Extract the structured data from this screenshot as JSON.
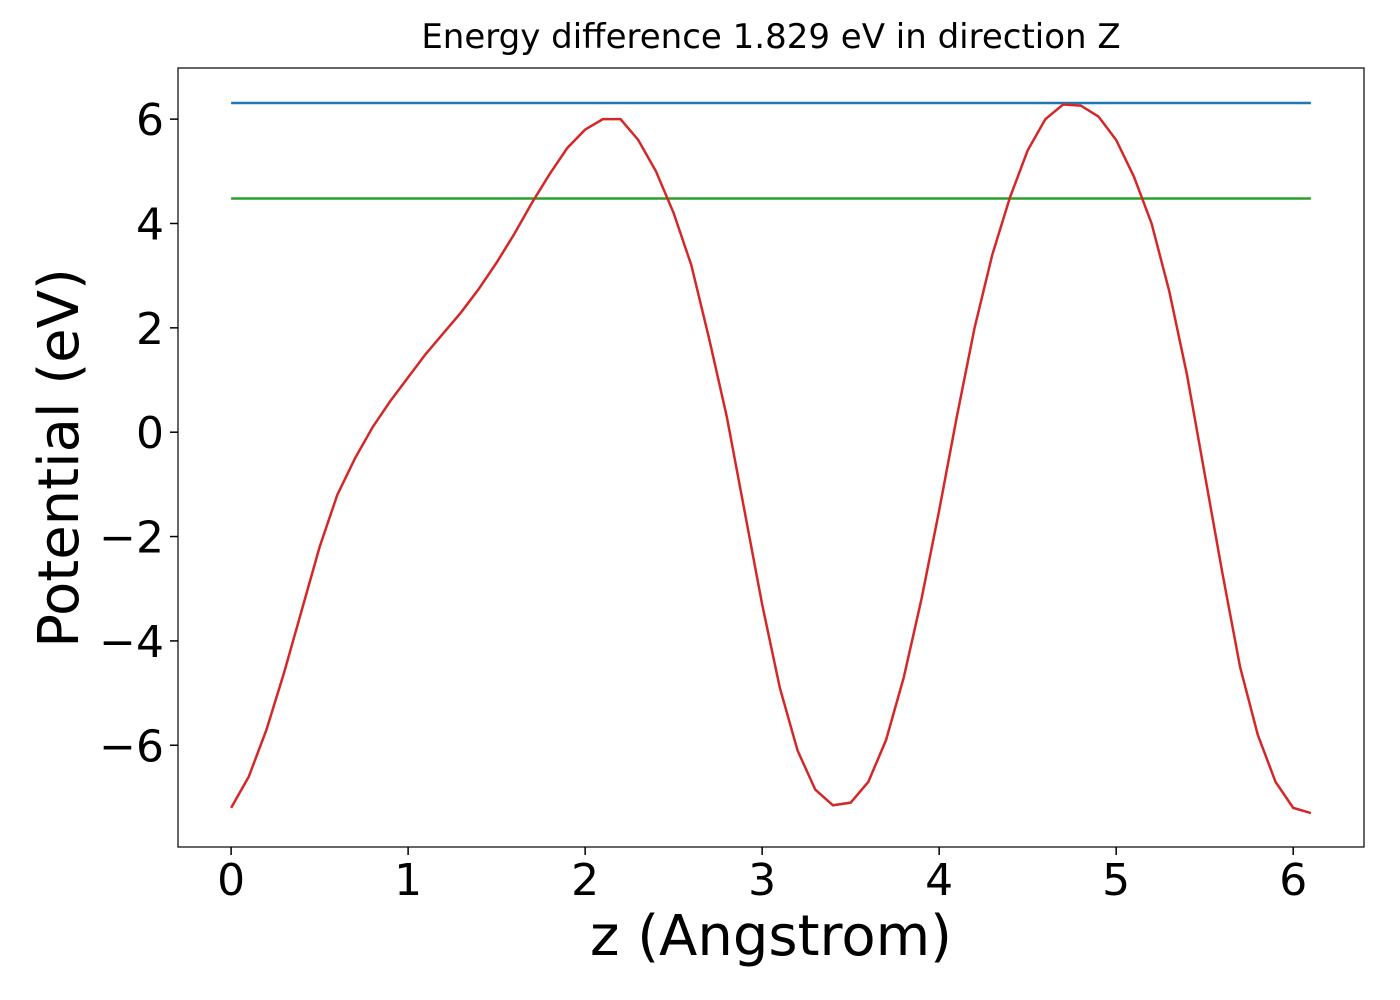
{
  "chart_data": {
    "type": "line",
    "title": "Energy difference 1.829 eV in direction Z",
    "xlabel": "z (Angstrom)",
    "ylabel": "Potential (eV)",
    "xlim": [
      -0.3,
      6.4
    ],
    "ylim": [
      -7.95,
      6.98
    ],
    "xticks": [
      0,
      1,
      2,
      3,
      4,
      5,
      6
    ],
    "yticks": [
      {
        "value": -6,
        "label": "−6"
      },
      {
        "value": -4,
        "label": "−4"
      },
      {
        "value": -2,
        "label": "−2"
      },
      0,
      2,
      4,
      6
    ],
    "grid": false,
    "series": [
      {
        "color": "#1f77b4",
        "x": [
          0,
          6.1
        ],
        "values": [
          6.31,
          6.31
        ]
      },
      {
        "color": "#2ca02c",
        "x": [
          0,
          6.1
        ],
        "values": [
          4.48,
          4.48
        ]
      },
      {
        "color": "#d62728",
        "x": [
          0,
          0.1,
          0.2,
          0.3,
          0.4,
          0.5,
          0.6,
          0.7,
          0.8,
          0.9,
          1.0,
          1.1,
          1.2,
          1.3,
          1.4,
          1.5,
          1.6,
          1.7,
          1.8,
          1.9,
          2.0,
          2.1,
          2.2,
          2.3,
          2.4,
          2.5,
          2.6,
          2.7,
          2.8,
          2.9,
          3.0,
          3.1,
          3.2,
          3.3,
          3.4,
          3.5,
          3.6,
          3.7,
          3.8,
          3.9,
          4.0,
          4.1,
          4.2,
          4.3,
          4.4,
          4.5,
          4.6,
          4.7,
          4.8,
          4.9,
          5.0,
          5.1,
          5.2,
          5.3,
          5.4,
          5.5,
          5.6,
          5.7,
          5.8,
          5.9,
          6.0,
          6.1
        ],
        "values": [
          -7.2,
          -6.6,
          -5.7,
          -4.6,
          -3.4,
          -2.2,
          -1.2,
          -0.5,
          0.1,
          0.6,
          1.05,
          1.5,
          1.9,
          2.3,
          2.75,
          3.25,
          3.8,
          4.4,
          4.95,
          5.45,
          5.8,
          6.0,
          6.0,
          5.6,
          5.0,
          4.2,
          3.2,
          1.8,
          0.3,
          -1.5,
          -3.3,
          -4.9,
          -6.1,
          -6.85,
          -7.15,
          -7.1,
          -6.7,
          -5.9,
          -4.7,
          -3.2,
          -1.5,
          0.3,
          2.0,
          3.4,
          4.5,
          5.4,
          6.0,
          6.28,
          6.26,
          6.05,
          5.6,
          4.9,
          4.0,
          2.7,
          1.1,
          -0.8,
          -2.7,
          -4.5,
          -5.8,
          -6.7,
          -7.2,
          -7.3
        ]
      }
    ]
  }
}
